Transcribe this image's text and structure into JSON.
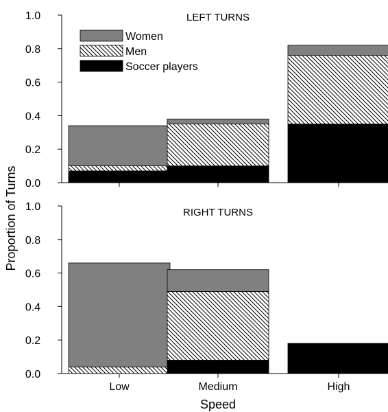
{
  "colors": {
    "women": "#808080",
    "men_hatch_bg": "#ffffff",
    "men_hatch_line": "#000000",
    "soccer": "#000000",
    "axis": "#000000"
  },
  "legend": {
    "placement": "top-left",
    "items": [
      {
        "series": "Women",
        "label": "Women",
        "fill": "solid-gray"
      },
      {
        "series": "Men",
        "label": "Men",
        "fill": "diagonal-hatch"
      },
      {
        "series": "Soccer players",
        "label": "Soccer players",
        "fill": "solid-black"
      }
    ]
  },
  "shared": {
    "ylabel": "Proportion of Turns",
    "xlabel": "Speed"
  },
  "chart_data": [
    {
      "type": "bar",
      "stacked": true,
      "title": "LEFT TURNS",
      "categories": [
        "Low",
        "Medium",
        "High"
      ],
      "ylim": [
        0,
        1.0
      ],
      "yticks": [
        "0.0",
        "0.2",
        "0.4",
        "0.6",
        "0.8",
        "1.0"
      ],
      "ylabel": "Proportion of Turns",
      "xlabel": "",
      "grid": false,
      "series": [
        {
          "name": "Soccer players",
          "values": [
            0.07,
            0.1,
            0.35
          ]
        },
        {
          "name": "Men",
          "values": [
            0.03,
            0.25,
            0.41
          ]
        },
        {
          "name": "Women",
          "values": [
            0.24,
            0.03,
            0.06
          ]
        }
      ]
    },
    {
      "type": "bar",
      "stacked": true,
      "title": "RIGHT TURNS",
      "categories": [
        "Low",
        "Medium",
        "High"
      ],
      "ylim": [
        0,
        1.0
      ],
      "yticks": [
        "0.0",
        "0.2",
        "0.4",
        "0.6",
        "0.8",
        "1.0"
      ],
      "ylabel": "Proportion of Turns",
      "xlabel": "Speed",
      "grid": false,
      "series": [
        {
          "name": "Soccer players",
          "values": [
            0.0,
            0.08,
            0.18
          ]
        },
        {
          "name": "Men",
          "values": [
            0.04,
            0.41,
            0.0
          ]
        },
        {
          "name": "Women",
          "values": [
            0.62,
            0.13,
            0.0
          ]
        }
      ]
    }
  ]
}
